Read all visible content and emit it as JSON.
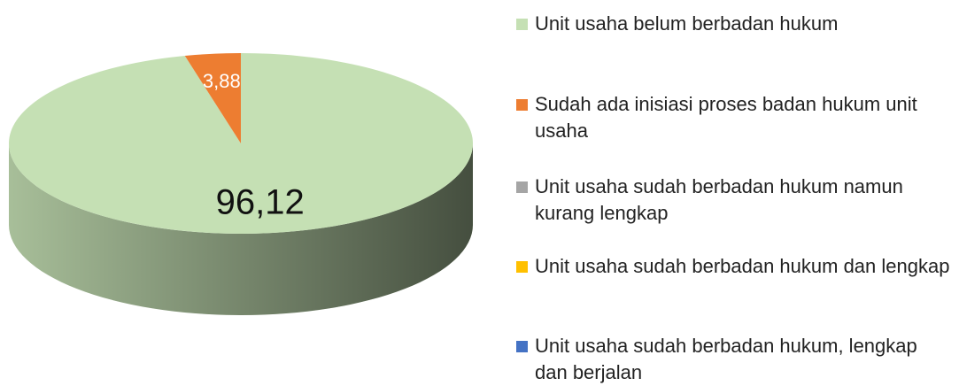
{
  "chart_data": {
    "type": "pie3d",
    "categories": [
      "Unit usaha belum berbadan hukum",
      "Sudah ada inisiasi proses badan hukum unit usaha",
      "Unit usaha sudah berbadan hukum namun kurang lengkap",
      "Unit usaha sudah berbadan hukum dan lengkap",
      "Unit usaha sudah berbadan hukum, lengkap dan berjalan"
    ],
    "values": [
      96.12,
      3.88,
      0,
      0,
      0
    ],
    "value_labels": [
      "96,12",
      "3,88",
      null,
      null,
      null
    ],
    "colors": [
      "#c5e0b4",
      "#ed7d31",
      "#a5a5a5",
      "#ffc000",
      "#4472c4"
    ],
    "legend": "right"
  }
}
